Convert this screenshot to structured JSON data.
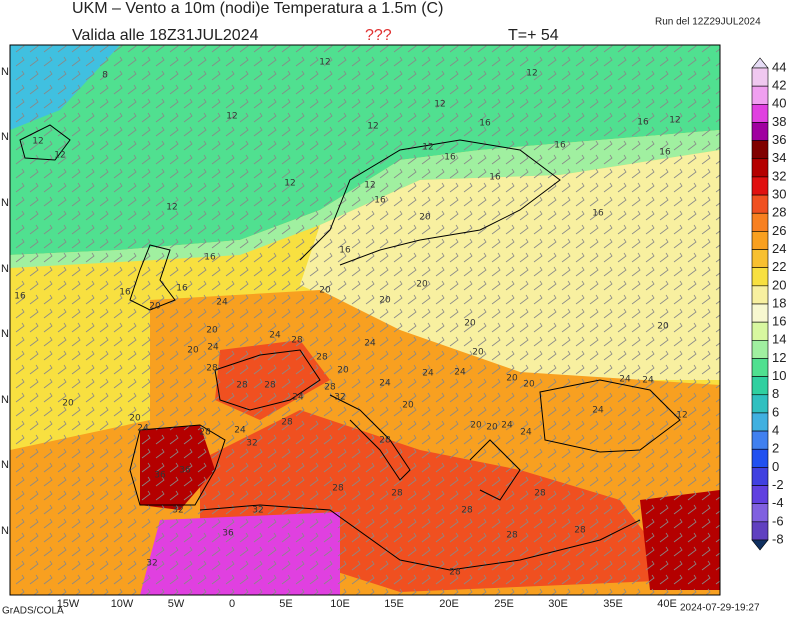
{
  "header": {
    "title": "UKM – Vento a 10m (nodi)e Temperatura a 1.5m (C)",
    "valid": "Valida alle 18Z31JUL2024",
    "flag": "???",
    "step": "T=+ 54",
    "run": "Run del 12Z29JUL2024"
  },
  "map": {
    "lon_labels": [
      "15W",
      "10W",
      "5W",
      "0",
      "5E",
      "10E",
      "15E",
      "20E",
      "25E",
      "30E",
      "35E",
      "40E"
    ],
    "lat_labels": [
      "N",
      "N",
      "N",
      "N",
      "N",
      "N",
      "N",
      "N"
    ],
    "contour_labels": [
      "8",
      "12",
      "12",
      "12",
      "12",
      "12",
      "16",
      "16",
      "12",
      "12",
      "12",
      "12",
      "16",
      "16",
      "16",
      "12",
      "12",
      "16",
      "16",
      "12",
      "20",
      "16",
      "16",
      "16",
      "16",
      "16",
      "16",
      "20",
      "20",
      "20",
      "24",
      "20",
      "20",
      "20",
      "20",
      "24",
      "28",
      "24",
      "20",
      "24",
      "20",
      "28",
      "28",
      "20",
      "24",
      "24",
      "24",
      "28",
      "28",
      "28",
      "24",
      "24",
      "20",
      "20",
      "20",
      "24",
      "32",
      "20",
      "24",
      "12",
      "20",
      "24",
      "28",
      "20",
      "20",
      "24",
      "24",
      "28",
      "24",
      "28",
      "32",
      "36",
      "36",
      "28",
      "32",
      "28",
      "28",
      "28",
      "28",
      "32",
      "36",
      "32",
      "28",
      "28"
    ]
  },
  "colorbar": {
    "levels": [
      44,
      42,
      40,
      38,
      36,
      34,
      32,
      30,
      28,
      26,
      24,
      22,
      20,
      18,
      16,
      14,
      12,
      10,
      8,
      6,
      4,
      2,
      0,
      -2,
      -4,
      -6,
      -8
    ],
    "colors": [
      "#e6dcf5",
      "#f0c8f0",
      "#f0a0f0",
      "#e040e0",
      "#a000a0",
      "#800000",
      "#b40000",
      "#e01010",
      "#f05020",
      "#f88020",
      "#f8a020",
      "#f8c030",
      "#f8e040",
      "#f8f0a0",
      "#f8f8d0",
      "#d8f8a0",
      "#a0f0a0",
      "#50e090",
      "#30d0a0",
      "#30c0c0",
      "#40b0e0",
      "#4080f0",
      "#2050f0",
      "#4040e0",
      "#6040e0",
      "#8060e0",
      "#6040c0",
      "#103060"
    ]
  },
  "footer": {
    "left": "GrADS/COLA",
    "right": "2024-07-29-19:27"
  }
}
